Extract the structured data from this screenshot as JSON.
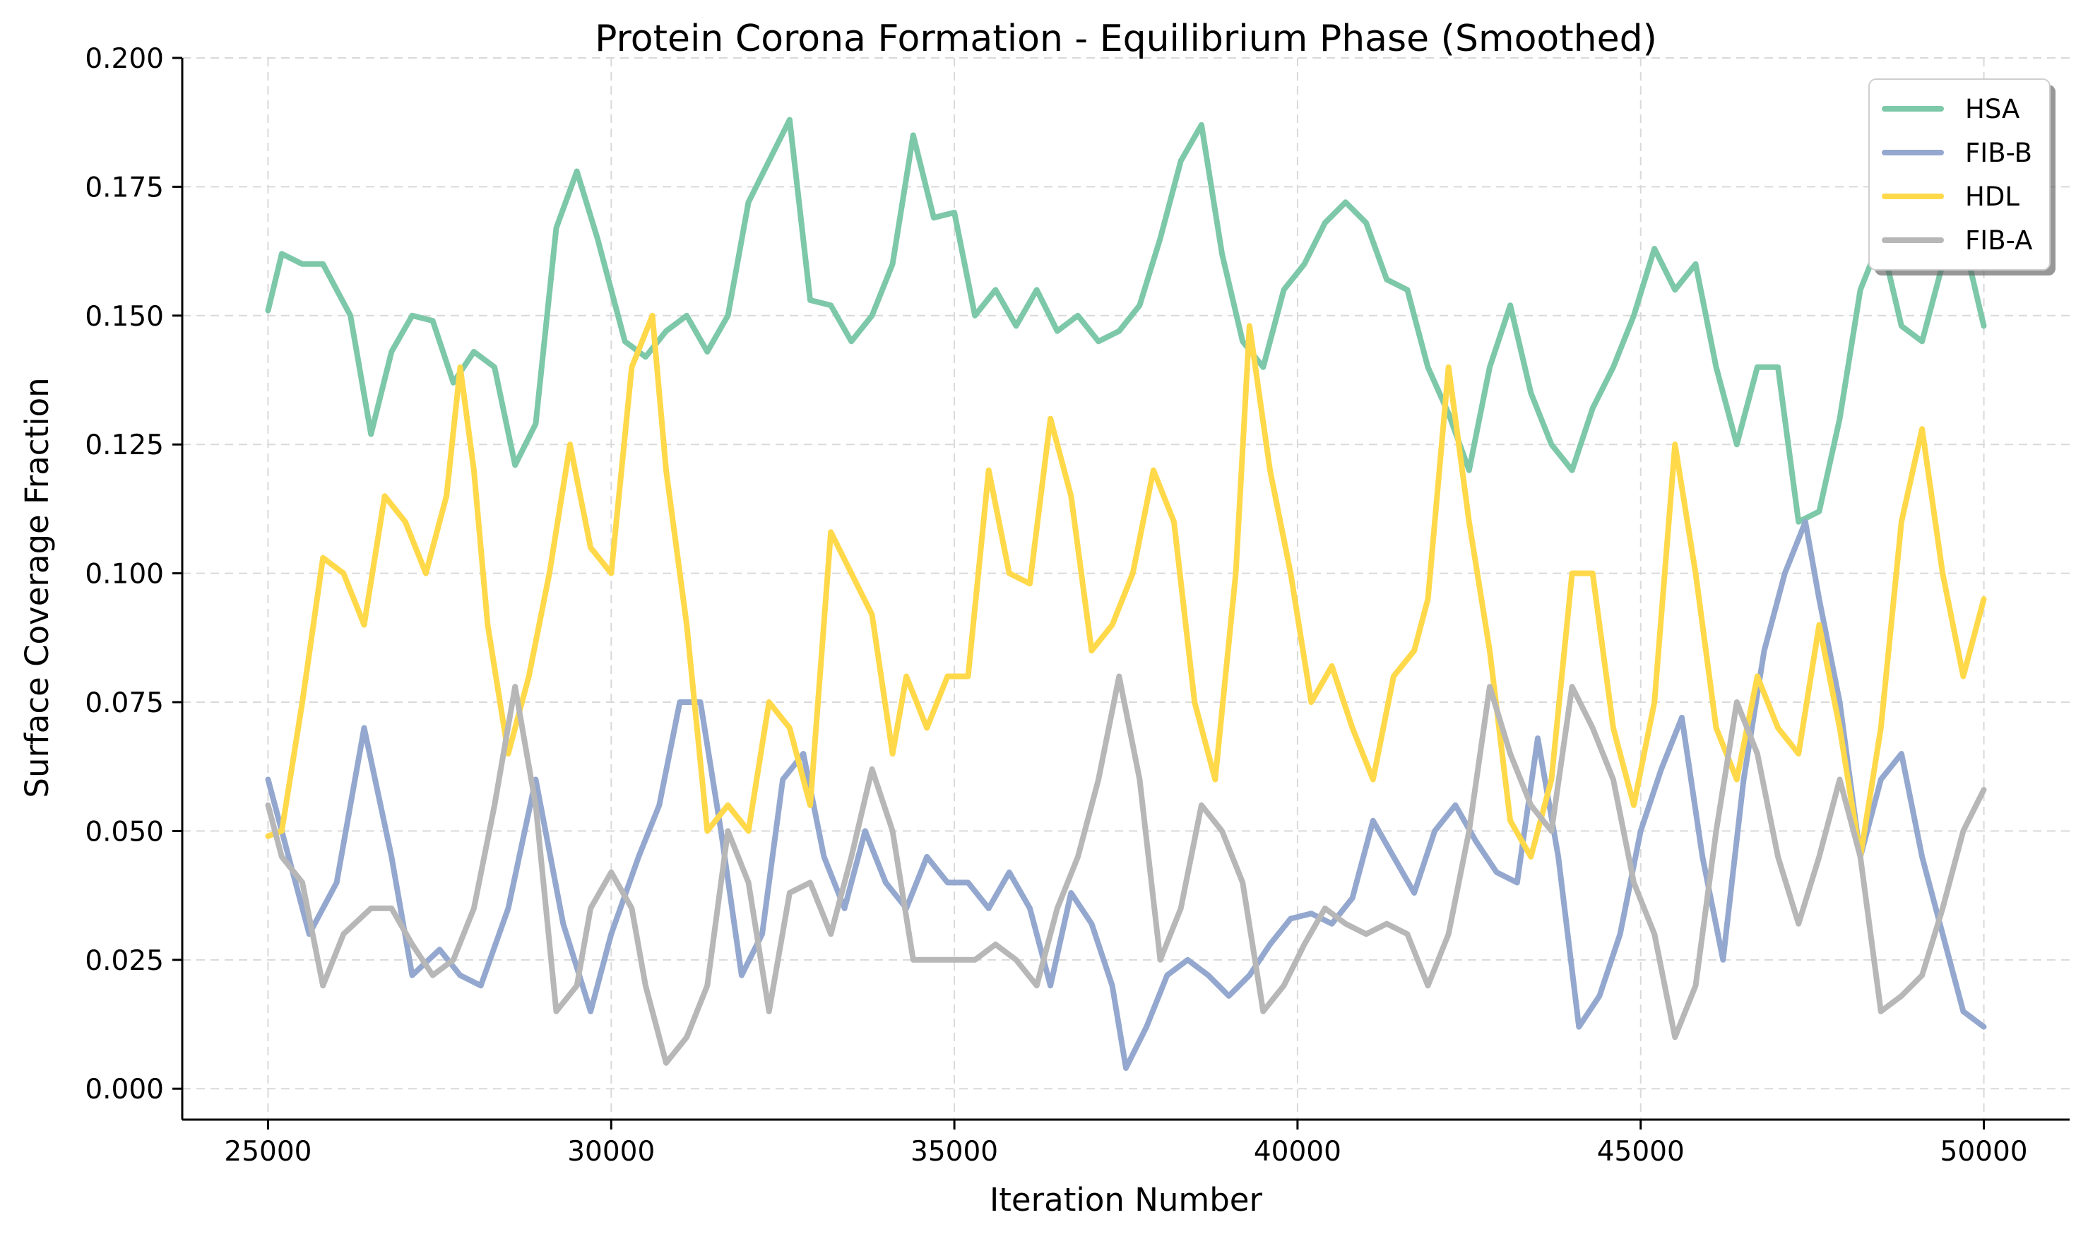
{
  "chart_data": {
    "type": "line",
    "title": "Protein Corona Formation - Equilibrium Phase (Smoothed)",
    "xlabel": "Iteration Number",
    "ylabel": "Surface Coverage Fraction",
    "xlim": [
      23750,
      51250
    ],
    "ylim": [
      -0.006,
      0.2
    ],
    "x_ticks": [
      25000,
      30000,
      35000,
      40000,
      45000,
      50000
    ],
    "y_ticks": [
      "0.000",
      "0.025",
      "0.050",
      "0.075",
      "0.100",
      "0.125",
      "0.150",
      "0.175",
      "0.200"
    ],
    "grid": true,
    "legend_position": "top-right",
    "series": [
      {
        "name": "HSA",
        "color": "#7dc8a9",
        "x": [
          25000,
          25200,
          25500,
          25800,
          26200,
          26500,
          26800,
          27100,
          27400,
          27700,
          28000,
          28300,
          28600,
          28900,
          29200,
          29500,
          29800,
          30200,
          30500,
          30800,
          31100,
          31400,
          31700,
          32000,
          32300,
          32600,
          32900,
          33200,
          33500,
          33800,
          34100,
          34400,
          34700,
          35000,
          35300,
          35600,
          35900,
          36200,
          36500,
          36800,
          37100,
          37400,
          37700,
          38000,
          38300,
          38600,
          38900,
          39200,
          39500,
          39800,
          40100,
          40400,
          40700,
          41000,
          41300,
          41600,
          41900,
          42200,
          42500,
          42800,
          43100,
          43400,
          43700,
          44000,
          44300,
          44600,
          44900,
          45200,
          45500,
          45800,
          46100,
          46400,
          46700,
          47000,
          47300,
          47600,
          47900,
          48200,
          48500,
          48800,
          49100,
          49400,
          49700,
          50000
        ],
        "values": [
          0.151,
          0.162,
          0.16,
          0.16,
          0.15,
          0.127,
          0.143,
          0.15,
          0.149,
          0.137,
          0.143,
          0.14,
          0.121,
          0.129,
          0.167,
          0.178,
          0.165,
          0.145,
          0.142,
          0.147,
          0.15,
          0.143,
          0.15,
          0.172,
          0.18,
          0.188,
          0.153,
          0.152,
          0.145,
          0.15,
          0.16,
          0.185,
          0.169,
          0.17,
          0.15,
          0.155,
          0.148,
          0.155,
          0.147,
          0.15,
          0.145,
          0.147,
          0.152,
          0.165,
          0.18,
          0.187,
          0.162,
          0.145,
          0.14,
          0.155,
          0.16,
          0.168,
          0.172,
          0.168,
          0.157,
          0.155,
          0.14,
          0.131,
          0.12,
          0.14,
          0.152,
          0.135,
          0.125,
          0.12,
          0.132,
          0.14,
          0.15,
          0.163,
          0.155,
          0.16,
          0.14,
          0.125,
          0.14,
          0.14,
          0.11,
          0.112,
          0.13,
          0.155,
          0.165,
          0.148,
          0.145,
          0.16,
          0.165,
          0.148
        ]
      },
      {
        "name": "FIB-B",
        "color": "#94a8cf",
        "x": [
          25000,
          25300,
          25600,
          26000,
          26400,
          26800,
          27100,
          27500,
          27800,
          28100,
          28500,
          28900,
          29300,
          29700,
          30000,
          30400,
          30700,
          31000,
          31300,
          31600,
          31900,
          32200,
          32500,
          32800,
          33100,
          33400,
          33700,
          34000,
          34300,
          34600,
          34900,
          35200,
          35500,
          35800,
          36100,
          36400,
          36700,
          37000,
          37300,
          37500,
          37800,
          38100,
          38400,
          38700,
          39000,
          39300,
          39600,
          39900,
          40200,
          40500,
          40800,
          41100,
          41400,
          41700,
          42000,
          42300,
          42600,
          42900,
          43200,
          43500,
          43800,
          44100,
          44400,
          44700,
          45000,
          45300,
          45600,
          45900,
          46200,
          46500,
          46800,
          47100,
          47400,
          47600,
          47900,
          48200,
          48500,
          48800,
          49100,
          49400,
          49700,
          50000
        ],
        "values": [
          0.06,
          0.045,
          0.03,
          0.04,
          0.07,
          0.045,
          0.022,
          0.027,
          0.022,
          0.02,
          0.035,
          0.06,
          0.032,
          0.015,
          0.03,
          0.045,
          0.055,
          0.075,
          0.075,
          0.05,
          0.022,
          0.03,
          0.06,
          0.065,
          0.045,
          0.035,
          0.05,
          0.04,
          0.035,
          0.045,
          0.04,
          0.04,
          0.035,
          0.042,
          0.035,
          0.02,
          0.038,
          0.032,
          0.02,
          0.004,
          0.012,
          0.022,
          0.025,
          0.022,
          0.018,
          0.022,
          0.028,
          0.033,
          0.034,
          0.032,
          0.037,
          0.052,
          0.045,
          0.038,
          0.05,
          0.055,
          0.048,
          0.042,
          0.04,
          0.068,
          0.045,
          0.012,
          0.018,
          0.03,
          0.05,
          0.062,
          0.072,
          0.045,
          0.025,
          0.06,
          0.085,
          0.1,
          0.11,
          0.095,
          0.075,
          0.045,
          0.06,
          0.065,
          0.045,
          0.03,
          0.015,
          0.012
        ]
      },
      {
        "name": "HDL",
        "color": "#ffd94a",
        "x": [
          25000,
          25200,
          25500,
          25800,
          26100,
          26400,
          26700,
          27000,
          27300,
          27600,
          27800,
          28000,
          28200,
          28500,
          28800,
          29100,
          29400,
          29700,
          30000,
          30300,
          30600,
          30800,
          31100,
          31400,
          31700,
          32000,
          32300,
          32600,
          32900,
          33200,
          33500,
          33800,
          34100,
          34300,
          34600,
          34900,
          35200,
          35500,
          35800,
          36100,
          36400,
          36700,
          37000,
          37300,
          37600,
          37900,
          38200,
          38500,
          38800,
          39100,
          39300,
          39600,
          39900,
          40200,
          40500,
          40800,
          41100,
          41400,
          41700,
          41900,
          42200,
          42500,
          42800,
          43100,
          43400,
          43700,
          44000,
          44300,
          44600,
          44900,
          45200,
          45500,
          45800,
          46100,
          46400,
          46700,
          47000,
          47300,
          47600,
          47900,
          48200,
          48500,
          48800,
          49100,
          49400,
          49700,
          50000
        ],
        "values": [
          0.049,
          0.05,
          0.075,
          0.103,
          0.1,
          0.09,
          0.115,
          0.11,
          0.1,
          0.115,
          0.14,
          0.12,
          0.09,
          0.065,
          0.08,
          0.1,
          0.125,
          0.105,
          0.1,
          0.14,
          0.15,
          0.12,
          0.09,
          0.05,
          0.055,
          0.05,
          0.075,
          0.07,
          0.055,
          0.108,
          0.1,
          0.092,
          0.065,
          0.08,
          0.07,
          0.08,
          0.08,
          0.12,
          0.1,
          0.098,
          0.13,
          0.115,
          0.085,
          0.09,
          0.1,
          0.12,
          0.11,
          0.075,
          0.06,
          0.1,
          0.148,
          0.12,
          0.1,
          0.075,
          0.082,
          0.07,
          0.06,
          0.08,
          0.085,
          0.095,
          0.14,
          0.11,
          0.085,
          0.052,
          0.045,
          0.06,
          0.1,
          0.1,
          0.07,
          0.055,
          0.075,
          0.125,
          0.1,
          0.07,
          0.06,
          0.08,
          0.07,
          0.065,
          0.09,
          0.07,
          0.045,
          0.07,
          0.11,
          0.128,
          0.1,
          0.08,
          0.095
        ]
      },
      {
        "name": "FIB-A",
        "color": "#b7b7b7",
        "x": [
          25000,
          25200,
          25500,
          25800,
          26100,
          26500,
          26800,
          27100,
          27400,
          27700,
          28000,
          28300,
          28600,
          28900,
          29200,
          29500,
          29700,
          30000,
          30300,
          30500,
          30800,
          31100,
          31400,
          31700,
          32000,
          32300,
          32600,
          32900,
          33200,
          33500,
          33800,
          34100,
          34400,
          34700,
          35000,
          35300,
          35600,
          35900,
          36200,
          36500,
          36800,
          37100,
          37400,
          37700,
          38000,
          38300,
          38600,
          38900,
          39200,
          39500,
          39800,
          40100,
          40400,
          40700,
          41000,
          41300,
          41600,
          41900,
          42200,
          42500,
          42800,
          43100,
          43400,
          43700,
          44000,
          44300,
          44600,
          44900,
          45200,
          45500,
          45800,
          46100,
          46400,
          46700,
          47000,
          47300,
          47600,
          47900,
          48200,
          48500,
          48800,
          49100,
          49400,
          49700,
          50000
        ],
        "values": [
          0.055,
          0.045,
          0.04,
          0.02,
          0.03,
          0.035,
          0.035,
          0.028,
          0.022,
          0.025,
          0.035,
          0.055,
          0.078,
          0.055,
          0.015,
          0.02,
          0.035,
          0.042,
          0.035,
          0.02,
          0.005,
          0.01,
          0.02,
          0.05,
          0.04,
          0.015,
          0.038,
          0.04,
          0.03,
          0.045,
          0.062,
          0.05,
          0.025,
          0.025,
          0.025,
          0.025,
          0.028,
          0.025,
          0.02,
          0.035,
          0.045,
          0.06,
          0.08,
          0.06,
          0.025,
          0.035,
          0.055,
          0.05,
          0.04,
          0.015,
          0.02,
          0.028,
          0.035,
          0.032,
          0.03,
          0.032,
          0.03,
          0.02,
          0.03,
          0.05,
          0.078,
          0.065,
          0.055,
          0.05,
          0.078,
          0.07,
          0.06,
          0.04,
          0.03,
          0.01,
          0.02,
          0.05,
          0.075,
          0.065,
          0.045,
          0.032,
          0.045,
          0.06,
          0.045,
          0.015,
          0.018,
          0.022,
          0.035,
          0.05,
          0.058
        ]
      }
    ]
  }
}
